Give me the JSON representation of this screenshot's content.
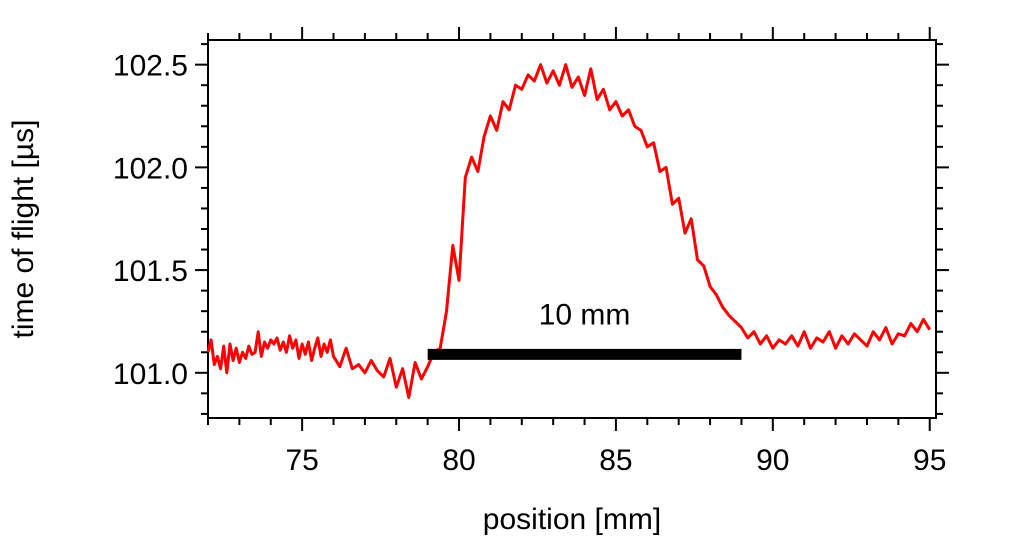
{
  "chart_data": {
    "type": "line",
    "title": "",
    "xlabel": "position [mm]",
    "ylabel": "time of flight [µs]",
    "xlim": [
      72.0,
      95.2
    ],
    "ylim": [
      100.78,
      102.62
    ],
    "x_ticks": [
      75,
      80,
      85,
      90,
      95
    ],
    "x_tick_labels": [
      "75",
      "80",
      "85",
      "90",
      "95"
    ],
    "y_ticks": [
      101.0,
      101.5,
      102.0,
      102.5
    ],
    "y_tick_labels": [
      "101.0",
      "101.5",
      "102.0",
      "102.5"
    ],
    "grid": false,
    "series": [
      {
        "color": "#ff0000",
        "x": [
          72.0,
          72.1,
          72.2,
          72.3,
          72.4,
          72.5,
          72.6,
          72.7,
          72.8,
          72.9,
          73.0,
          73.1,
          73.2,
          73.3,
          73.4,
          73.5,
          73.6,
          73.7,
          73.8,
          73.9,
          74.0,
          74.1,
          74.2,
          74.3,
          74.4,
          74.5,
          74.6,
          74.7,
          74.8,
          74.9,
          75.0,
          75.1,
          75.2,
          75.3,
          75.4,
          75.5,
          75.6,
          75.7,
          75.8,
          75.9,
          76.0,
          76.2,
          76.4,
          76.6,
          76.8,
          77.0,
          77.2,
          77.4,
          77.6,
          77.8,
          78.0,
          78.2,
          78.4,
          78.6,
          78.8,
          79.0,
          79.2,
          79.4,
          79.6,
          79.8,
          80.0,
          80.2,
          80.4,
          80.6,
          80.8,
          81.0,
          81.2,
          81.4,
          81.6,
          81.8,
          82.0,
          82.2,
          82.4,
          82.6,
          82.8,
          83.0,
          83.2,
          83.4,
          83.6,
          83.8,
          84.0,
          84.2,
          84.4,
          84.6,
          84.8,
          85.0,
          85.2,
          85.4,
          85.6,
          85.8,
          86.0,
          86.2,
          86.4,
          86.6,
          86.8,
          87.0,
          87.2,
          87.4,
          87.6,
          87.8,
          88.0,
          88.2,
          88.4,
          88.6,
          88.8,
          89.0,
          89.2,
          89.4,
          89.6,
          89.8,
          90.0,
          90.2,
          90.4,
          90.6,
          90.8,
          91.0,
          91.2,
          91.4,
          91.6,
          91.8,
          92.0,
          92.2,
          92.4,
          92.6,
          92.8,
          93.0,
          93.2,
          93.4,
          93.6,
          93.8,
          94.0,
          94.2,
          94.4,
          94.6,
          94.8,
          95.0
        ],
        "y": [
          101.1,
          101.16,
          101.04,
          101.08,
          101.02,
          101.13,
          101.0,
          101.14,
          101.06,
          101.12,
          101.05,
          101.1,
          101.07,
          101.13,
          101.09,
          101.1,
          101.2,
          101.08,
          101.15,
          101.12,
          101.16,
          101.14,
          101.17,
          101.11,
          101.15,
          101.1,
          101.18,
          101.12,
          101.16,
          101.07,
          101.14,
          101.09,
          101.15,
          101.06,
          101.12,
          101.17,
          101.08,
          101.14,
          101.1,
          101.16,
          101.08,
          101.03,
          101.12,
          101.02,
          101.04,
          101.0,
          101.06,
          101.01,
          100.98,
          101.07,
          100.93,
          101.02,
          100.88,
          101.05,
          100.97,
          101.03,
          101.1,
          101.12,
          101.3,
          101.62,
          101.45,
          101.95,
          102.05,
          101.98,
          102.15,
          102.25,
          102.18,
          102.32,
          102.28,
          102.4,
          102.38,
          102.45,
          102.42,
          102.5,
          102.41,
          102.47,
          102.4,
          102.5,
          102.39,
          102.44,
          102.35,
          102.48,
          102.33,
          102.38,
          102.28,
          102.32,
          102.25,
          102.28,
          102.2,
          102.18,
          102.1,
          102.12,
          101.98,
          102.0,
          101.82,
          101.85,
          101.68,
          101.75,
          101.55,
          101.52,
          101.42,
          101.38,
          101.32,
          101.28,
          101.25,
          101.22,
          101.17,
          101.2,
          101.14,
          101.18,
          101.12,
          101.16,
          101.14,
          101.18,
          101.13,
          101.2,
          101.12,
          101.17,
          101.15,
          101.2,
          101.12,
          101.18,
          101.14,
          101.19,
          101.16,
          101.13,
          101.2,
          101.16,
          101.22,
          101.14,
          101.19,
          101.18,
          101.24,
          101.2,
          101.26,
          101.21
        ]
      }
    ],
    "scale_bar": {
      "label": "10 mm",
      "x_start": 79.0,
      "x_end": 89.0,
      "y": 101.09
    }
  }
}
